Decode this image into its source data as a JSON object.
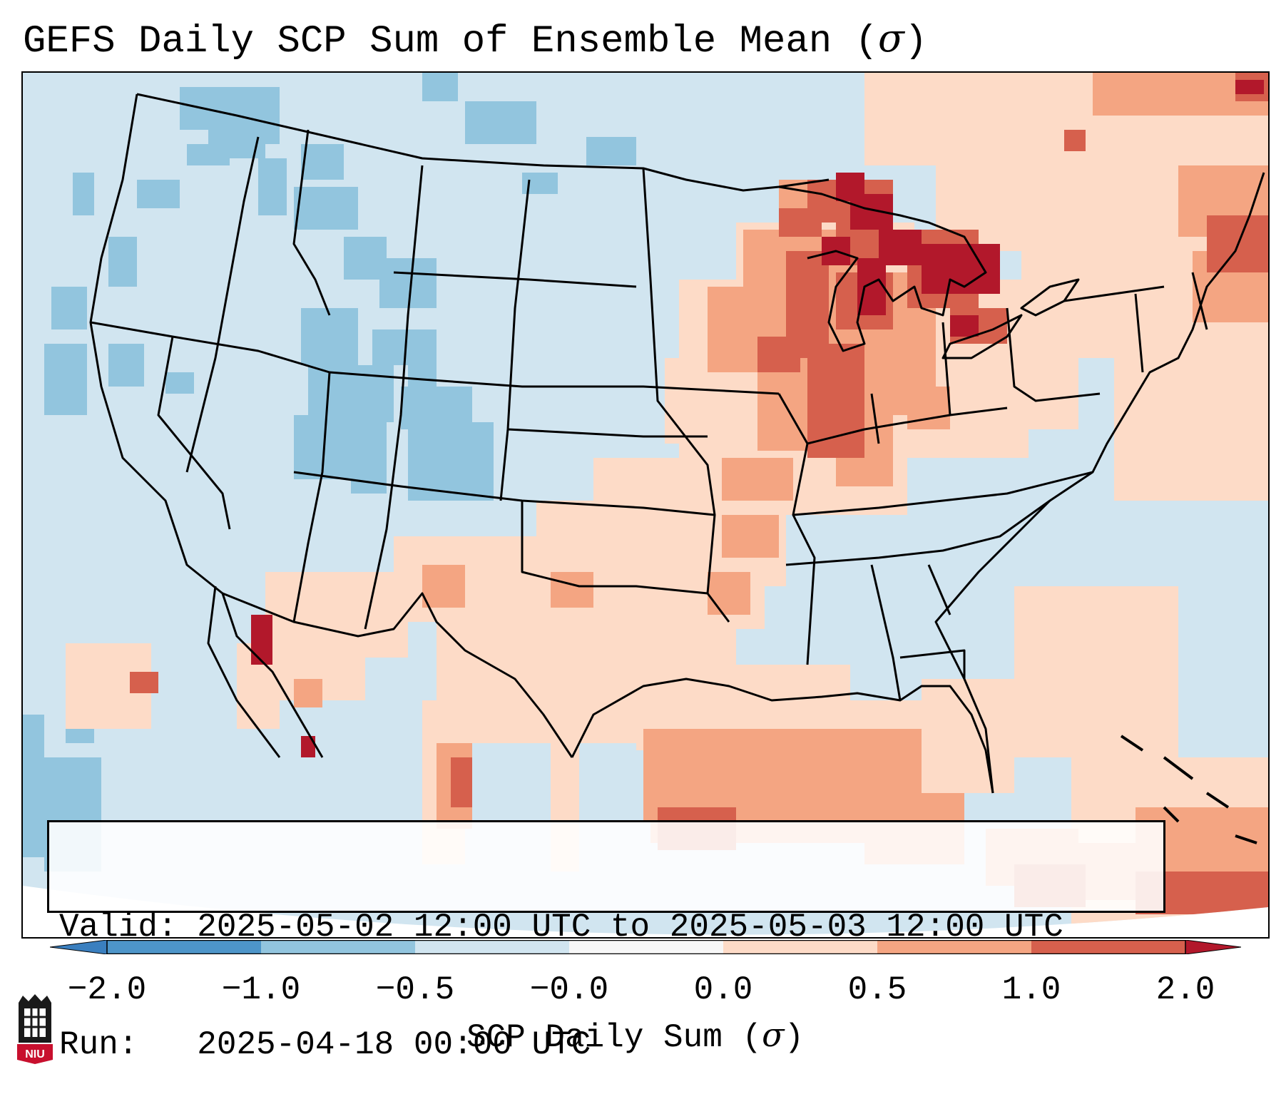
{
  "title": {
    "text": "GEFS Daily SCP Sum of Ensemble Mean (",
    "symbol": "σ",
    "close": ")"
  },
  "info": {
    "valid_line": "Valid: 2025-05-02 12:00 UTC to 2025-05-03 12:00 UTC",
    "run_line": "Run:   2025-04-18 00:00 UTC"
  },
  "colorbar": {
    "label_text": "SCP Daily Sum (",
    "label_symbol": "σ",
    "label_close": ")",
    "ticks": [
      "−2.0",
      "−1.0",
      "−0.5",
      "−0.0",
      "0.0",
      "0.5",
      "1.0",
      "2.0"
    ],
    "bins": [
      {
        "range": "< -2.0",
        "color": "#3a7fbf"
      },
      {
        "range": "-2.0 to -1.0",
        "color": "#4d95c9"
      },
      {
        "range": "-1.0 to -0.5",
        "color": "#92c5de"
      },
      {
        "range": "-0.5 to -0.0",
        "color": "#d1e5f0"
      },
      {
        "range": "-0.0 to 0.0",
        "color": "#f7f7f7"
      },
      {
        "range": "0.0 to 0.5",
        "color": "#fddbc7"
      },
      {
        "range": "0.5 to 1.0",
        "color": "#f4a582"
      },
      {
        "range": "1.0 to 2.0",
        "color": "#d6604d"
      },
      {
        "range": "> 2.0",
        "color": "#b2182b"
      }
    ]
  },
  "logo": {
    "text": "NIU"
  }
}
